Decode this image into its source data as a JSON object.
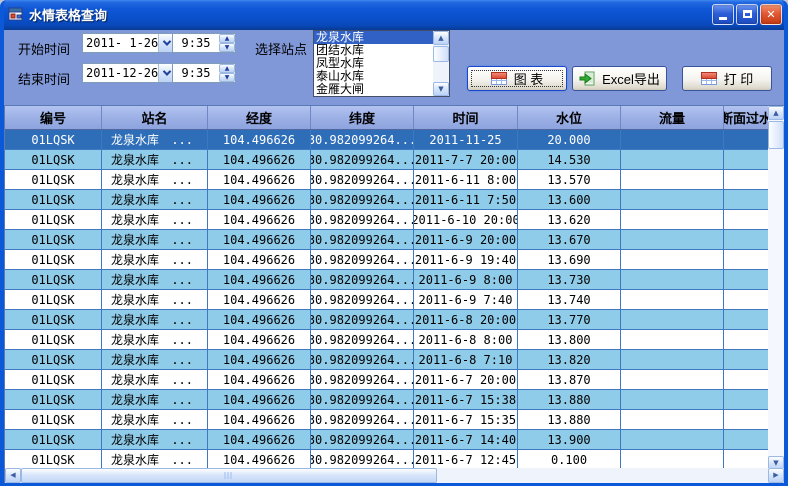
{
  "window": {
    "title": "水情表格查询"
  },
  "titlebar": {
    "minimize_icon": "minimize",
    "maximize_icon": "maximize",
    "close_icon": "close",
    "close_glyph": "✕"
  },
  "controls": {
    "start_label": "开始时间",
    "end_label": "结束时间",
    "station_label": "选择站点",
    "start_date": "2011- 1-26",
    "start_time": "9:35",
    "end_date": "2011-12-26",
    "end_time": "9:35",
    "stations": [
      "龙泉水库",
      "团结水库",
      "凤型水库",
      "泰山水库",
      "金雁大闸"
    ],
    "selected_station_index": 0
  },
  "buttons": {
    "chart": "图 表",
    "excel": "Excel导出",
    "print": "打 印"
  },
  "table": {
    "columns": [
      "编号",
      "站名",
      "经度",
      "纬度",
      "时间",
      "水位",
      "流量",
      "断面过水"
    ],
    "station_ellipsis": "...",
    "selected_row_index": 0,
    "rows": [
      [
        "01LQSK",
        "龙泉水库",
        "104.496626",
        "30.982099264...",
        "2011-11-25",
        "20.000",
        "",
        ""
      ],
      [
        "01LQSK",
        "龙泉水库",
        "104.496626",
        "30.982099264...",
        "2011-7-7 20:00",
        "14.530",
        "",
        ""
      ],
      [
        "01LQSK",
        "龙泉水库",
        "104.496626",
        "30.982099264...",
        "2011-6-11 8:00",
        "13.570",
        "",
        ""
      ],
      [
        "01LQSK",
        "龙泉水库",
        "104.496626",
        "30.982099264...",
        "2011-6-11 7:50",
        "13.600",
        "",
        ""
      ],
      [
        "01LQSK",
        "龙泉水库",
        "104.496626",
        "30.982099264...",
        "2011-6-10 20:00",
        "13.620",
        "",
        ""
      ],
      [
        "01LQSK",
        "龙泉水库",
        "104.496626",
        "30.982099264...",
        "2011-6-9 20:00",
        "13.670",
        "",
        ""
      ],
      [
        "01LQSK",
        "龙泉水库",
        "104.496626",
        "30.982099264...",
        "2011-6-9 19:40",
        "13.690",
        "",
        ""
      ],
      [
        "01LQSK",
        "龙泉水库",
        "104.496626",
        "30.982099264...",
        "2011-6-9 8:00",
        "13.730",
        "",
        ""
      ],
      [
        "01LQSK",
        "龙泉水库",
        "104.496626",
        "30.982099264...",
        "2011-6-9 7:40",
        "13.740",
        "",
        ""
      ],
      [
        "01LQSK",
        "龙泉水库",
        "104.496626",
        "30.982099264...",
        "2011-6-8 20:00",
        "13.770",
        "",
        ""
      ],
      [
        "01LQSK",
        "龙泉水库",
        "104.496626",
        "30.982099264...",
        "2011-6-8 8:00",
        "13.800",
        "",
        ""
      ],
      [
        "01LQSK",
        "龙泉水库",
        "104.496626",
        "30.982099264...",
        "2011-6-8 7:10",
        "13.820",
        "",
        ""
      ],
      [
        "01LQSK",
        "龙泉水库",
        "104.496626",
        "30.982099264...",
        "2011-6-7 20:00",
        "13.870",
        "",
        ""
      ],
      [
        "01LQSK",
        "龙泉水库",
        "104.496626",
        "30.982099264...",
        "2011-6-7 15:38",
        "13.880",
        "",
        ""
      ],
      [
        "01LQSK",
        "龙泉水库",
        "104.496626",
        "30.982099264...",
        "2011-6-7 15:35",
        "13.880",
        "",
        ""
      ],
      [
        "01LQSK",
        "龙泉水库",
        "104.496626",
        "30.982099264...",
        "2011-6-7 14:40",
        "13.900",
        "",
        ""
      ],
      [
        "01LQSK",
        "龙泉水库",
        "104.496626",
        "30.982099264...",
        "2011-6-7 12:45",
        "0.100",
        "",
        ""
      ]
    ]
  },
  "colors": {
    "panel": "#8098d8",
    "titlebar": "#0a50cc",
    "selected_row": "#2e6db8",
    "alt_row": "#8fccea",
    "grid_line": "#3e78c0",
    "highlight": "#3161c5"
  }
}
